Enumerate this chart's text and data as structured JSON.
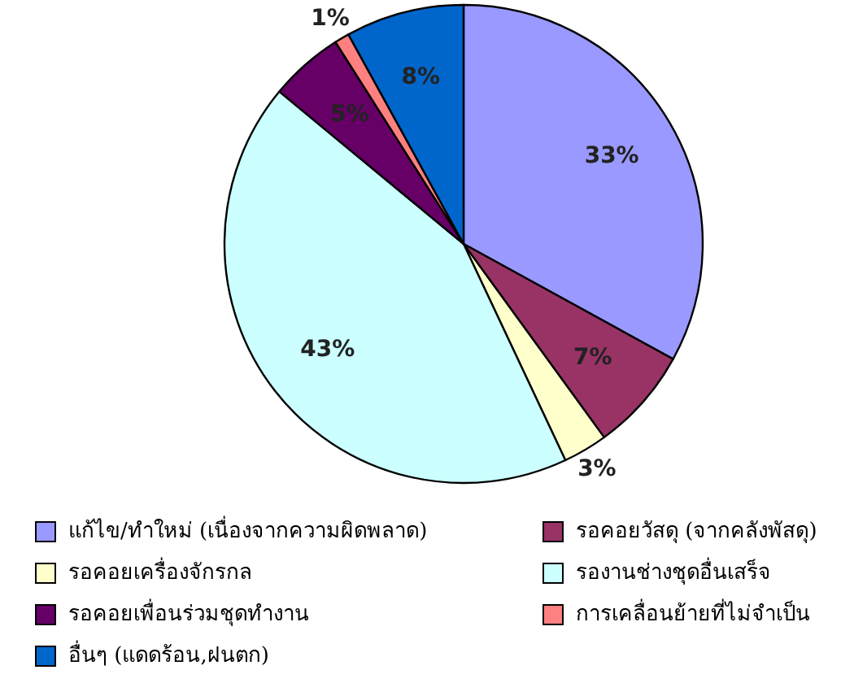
{
  "chart_data": {
    "type": "pie",
    "categories": [
      "แก้ไข/ทำใหม่ (เนื่องจากความผิดพลาด)",
      "รอคอยวัสดุ (จากคลังพัสดุ)",
      "รอคอยเครื่องจักรกล",
      "รองานช่างชุดอื่นเสร็จ",
      "รอคอยเพื่อนร่วมชุดทำงาน",
      "การเคลื่อนย้ายที่ไม่จำเป็น",
      "อื่นๆ (แดดร้อน,ฝนตก)"
    ],
    "values": [
      33,
      7,
      3,
      43,
      5,
      1,
      8
    ],
    "value_labels": [
      "33%",
      "7%",
      "3%",
      "43%",
      "5%",
      "1%",
      "8%"
    ],
    "colors": [
      "#9999ff",
      "#993366",
      "#ffffcc",
      "#ccffff",
      "#660066",
      "#ff8080",
      "#0066cc"
    ],
    "legend": "bottom"
  }
}
